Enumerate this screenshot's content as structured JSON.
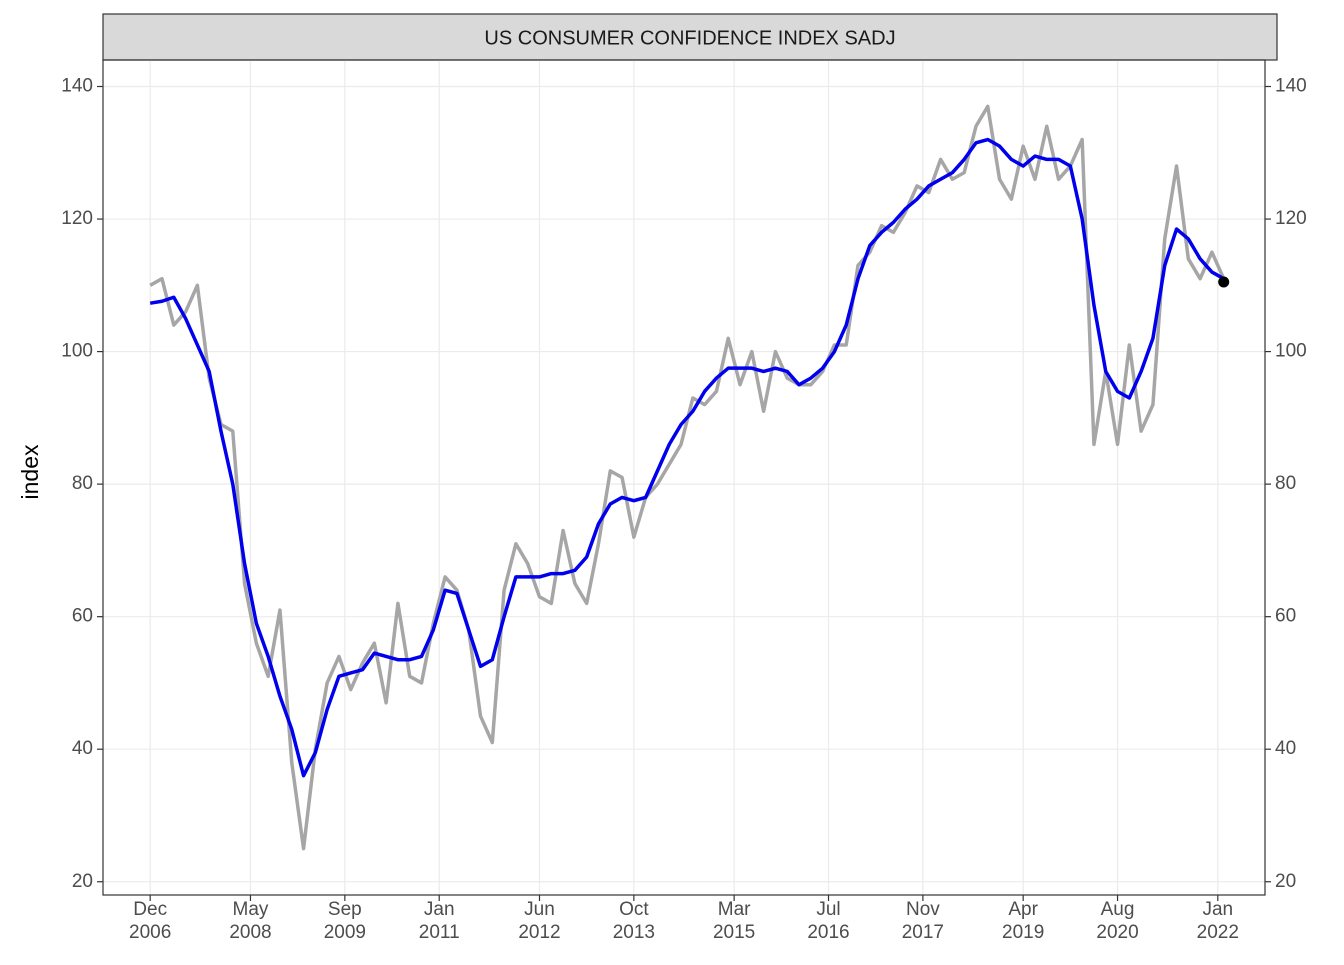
{
  "chart_data": {
    "type": "line",
    "title": "US CONSUMER CONFIDENCE INDEX SADJ",
    "y_label": "index",
    "x": [
      "2006-12",
      "2007-02",
      "2007-04",
      "2007-06",
      "2007-08",
      "2007-10",
      "2007-12",
      "2008-02",
      "2008-04",
      "2008-06",
      "2008-08",
      "2008-10",
      "2008-12",
      "2009-02",
      "2009-04",
      "2009-06",
      "2009-08",
      "2009-10",
      "2009-12",
      "2010-02",
      "2010-04",
      "2010-06",
      "2010-08",
      "2010-10",
      "2010-12",
      "2011-02",
      "2011-04",
      "2011-06",
      "2011-08",
      "2011-10",
      "2011-12",
      "2012-02",
      "2012-04",
      "2012-06",
      "2012-08",
      "2012-10",
      "2012-12",
      "2013-02",
      "2013-04",
      "2013-06",
      "2013-08",
      "2013-10",
      "2013-12",
      "2014-02",
      "2014-04",
      "2014-06",
      "2014-08",
      "2014-10",
      "2014-12",
      "2015-02",
      "2015-04",
      "2015-06",
      "2015-08",
      "2015-10",
      "2015-12",
      "2016-02",
      "2016-04",
      "2016-06",
      "2016-08",
      "2016-10",
      "2016-12",
      "2017-02",
      "2017-04",
      "2017-06",
      "2017-08",
      "2017-10",
      "2017-12",
      "2018-02",
      "2018-04",
      "2018-06",
      "2018-08",
      "2018-10",
      "2018-12",
      "2019-02",
      "2019-04",
      "2019-06",
      "2019-08",
      "2019-10",
      "2019-12",
      "2020-02",
      "2020-04",
      "2020-06",
      "2020-08",
      "2020-10",
      "2020-12",
      "2021-02",
      "2021-04",
      "2021-06",
      "2021-08",
      "2021-10",
      "2021-12",
      "2022-02"
    ],
    "series": [
      {
        "color": "#a6a6a6",
        "width": 3.5,
        "values": [
          110,
          111,
          104,
          106,
          110,
          96,
          89,
          88,
          65,
          56,
          51,
          61,
          38,
          25,
          40,
          50,
          54,
          49,
          53,
          56,
          47,
          62,
          51,
          50,
          59,
          66,
          64,
          58,
          45,
          41,
          64,
          71,
          68,
          63,
          62,
          73,
          65,
          62,
          71,
          82,
          81,
          72,
          78,
          80,
          83,
          86,
          93,
          92,
          94,
          102,
          95,
          100,
          91,
          100,
          96,
          95,
          95,
          97,
          101,
          101,
          113,
          115,
          119,
          118,
          121,
          125,
          124,
          129,
          126,
          127,
          134,
          137,
          126,
          123,
          131,
          126,
          134,
          126,
          128,
          132,
          86,
          97,
          86,
          101,
          88,
          92,
          117,
          128,
          114,
          111,
          115,
          111
        ]
      },
      {
        "color": "#0000ee",
        "width": 3.5,
        "values": [
          107.3,
          107.6,
          108.2,
          105,
          101,
          97,
          88,
          80,
          68,
          59,
          54,
          48,
          43,
          36,
          39.5,
          46,
          51,
          51.5,
          52,
          54.5,
          54,
          53.5,
          53.5,
          54,
          58,
          64,
          63.5,
          58,
          52.5,
          53.5,
          60,
          66,
          66,
          66,
          66.5,
          66.5,
          67,
          69,
          74,
          77,
          78,
          77.5,
          78,
          82,
          86,
          89,
          91,
          94,
          96,
          97.5,
          97.5,
          97.5,
          97,
          97.5,
          97,
          95,
          96,
          97.5,
          100,
          104,
          111,
          116,
          118,
          119.5,
          121.5,
          123,
          125,
          126,
          127,
          129,
          131.5,
          132,
          131,
          129,
          128,
          129.5,
          129,
          129,
          128,
          120,
          107,
          97,
          94,
          93,
          97,
          102,
          113,
          118.5,
          117,
          114,
          112,
          111
        ]
      }
    ],
    "last_point": {
      "x": "2022-02",
      "value": 110.5,
      "color": "#000000"
    },
    "xlim": [
      "2006-04",
      "2022-09"
    ],
    "xticks": [
      {
        "value": "2006-12",
        "label": "Dec\n2006"
      },
      {
        "value": "2008-05",
        "label": "May\n2008"
      },
      {
        "value": "2009-09",
        "label": "Sep\n2009"
      },
      {
        "value": "2011-01",
        "label": "Jan\n2011"
      },
      {
        "value": "2012-06",
        "label": "Jun\n2012"
      },
      {
        "value": "2013-10",
        "label": "Oct\n2013"
      },
      {
        "value": "2015-03",
        "label": "Mar\n2015"
      },
      {
        "value": "2016-07",
        "label": "Jul\n2016"
      },
      {
        "value": "2017-11",
        "label": "Nov\n2017"
      },
      {
        "value": "2019-04",
        "label": "Apr\n2019"
      },
      {
        "value": "2020-08",
        "label": "Aug\n2020"
      },
      {
        "value": "2022-01",
        "label": "Jan\n2022"
      }
    ],
    "ylim": [
      18,
      144
    ],
    "yticks": [
      20,
      40,
      60,
      80,
      100,
      120,
      140
    ],
    "y2lim": [
      18,
      144
    ],
    "y2ticks": [
      20,
      40,
      60,
      80,
      100,
      120,
      140
    ],
    "grid": true
  }
}
